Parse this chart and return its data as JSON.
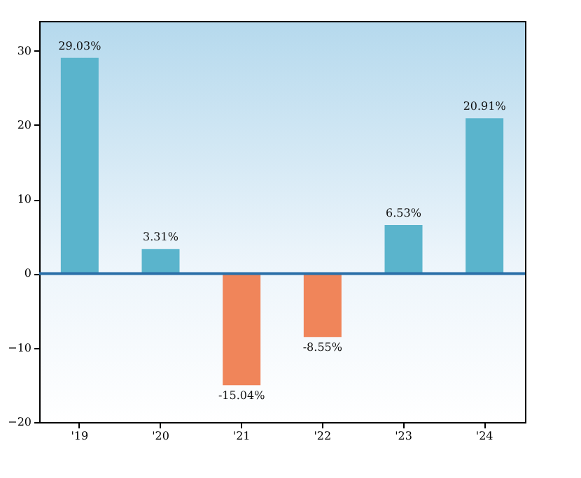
{
  "chart_data": {
    "type": "bar",
    "categories": [
      "'19",
      "'20",
      "'21",
      "'22",
      "'23",
      "'24"
    ],
    "values": [
      29.03,
      3.31,
      -15.04,
      -8.55,
      6.53,
      20.91
    ],
    "colors": [
      "#5ab4cc",
      "#5ab4cc",
      "#f0855a",
      "#f0855a",
      "#5ab4cc",
      "#5ab4cc"
    ],
    "value_labels": [
      "29.03%",
      "3.31%",
      "-15.04%",
      "-8.55%",
      "6.53%",
      "20.91%"
    ],
    "ylim": [
      -20,
      34
    ],
    "yticks": [
      -20,
      -10,
      0,
      10,
      20,
      30
    ],
    "ref_lines": [
      {
        "axis": "y",
        "value": 0,
        "color": "#2a6fa8"
      }
    ],
    "grid": false
  }
}
